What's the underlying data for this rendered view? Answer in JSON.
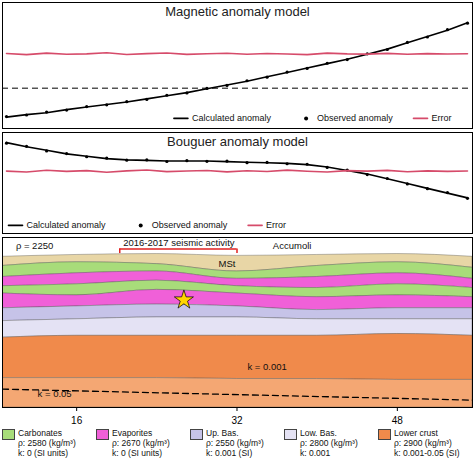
{
  "chart_data": [
    {
      "type": "line",
      "title": "Magnetic anomaly model",
      "x": [
        9,
        11,
        13,
        15,
        17,
        19,
        21,
        23,
        25,
        27,
        29,
        31,
        33,
        35,
        37,
        39,
        41,
        43,
        45,
        47,
        49,
        51,
        53,
        55
      ],
      "series": [
        {
          "name": "Calculated anomaly",
          "color": "#000000",
          "line_style": "solid",
          "values": [
            -41,
            -39,
            -37.5,
            -35,
            -33,
            -31,
            -29,
            -26.5,
            -24,
            -21.5,
            -18.5,
            -15.5,
            -12.5,
            -9,
            -5.5,
            -2,
            1.5,
            5,
            9,
            13,
            18,
            23,
            28,
            34
          ]
        },
        {
          "name": "Observed anomaly",
          "color": "#000000",
          "type": "scatter",
          "marker": "dot",
          "values": [
            -40.5,
            -39.3,
            -37,
            -35.4,
            -32.6,
            -31.2,
            -28.7,
            -26.9,
            -23.6,
            -21.8,
            -18.2,
            -15.8,
            -12.1,
            -9.3,
            -5.2,
            -2.3,
            1.8,
            4.7,
            9.3,
            12.7,
            18.3,
            22.6,
            28.4,
            33.6
          ]
        },
        {
          "name": "Error",
          "color": "#d64b6a",
          "line_style": "solid",
          "values": [
            9.5,
            8.6,
            9.8,
            8.9,
            9.2,
            10.1,
            8.7,
            9.4,
            9.9,
            8.8,
            9.3,
            9.7,
            8.9,
            9.5,
            9.1,
            8.6,
            9.8,
            9.2,
            9.0,
            9.6,
            8.9,
            9.4,
            9.1,
            9.3
          ]
        }
      ],
      "baseline": -18,
      "xlim": [
        8.6,
        55.5
      ],
      "ylim": [
        -50,
        50
      ],
      "tick_labels": false,
      "legend": "bottom-right"
    },
    {
      "type": "line",
      "title": "Bouguer anomaly model",
      "x": [
        9,
        11,
        13,
        15,
        17,
        19,
        21,
        23,
        25,
        27,
        29,
        31,
        33,
        35,
        37,
        39,
        41,
        43,
        45,
        47,
        49,
        51,
        53,
        55
      ],
      "series": [
        {
          "name": "Calculated anomaly",
          "color": "#000000",
          "line_style": "solid",
          "values": [
            36.5,
            33,
            30,
            27,
            25,
            23,
            22,
            21.5,
            21,
            21,
            21,
            20.5,
            20,
            19.5,
            19,
            18,
            16,
            13,
            10,
            6,
            2,
            -2,
            -6,
            -10
          ]
        },
        {
          "name": "Observed anomaly",
          "color": "#000000",
          "type": "scatter",
          "marker": "dot",
          "values": [
            36,
            33.4,
            29.5,
            27.3,
            24.6,
            23.4,
            21.7,
            21.9,
            20.6,
            21.3,
            20.7,
            20.9,
            19.6,
            19.8,
            18.7,
            18.3,
            15.6,
            13.4,
            9.6,
            6.3,
            1.7,
            -2.3,
            -5.6,
            -10.4
          ]
        },
        {
          "name": "Error",
          "color": "#d64b6a",
          "line_style": "solid",
          "values": [
            12.5,
            11.8,
            13.2,
            12.3,
            12.9,
            11.6,
            12.7,
            13.4,
            12.1,
            12.6,
            13.0,
            11.9,
            12.8,
            12.2,
            13.3,
            12.4,
            11.7,
            12.9,
            12.5,
            13.1,
            12.0,
            12.7,
            12.3,
            12.6
          ]
        }
      ],
      "xlim": [
        8.6,
        55.5
      ],
      "ylim": [
        -40,
        45
      ],
      "tick_labels": false,
      "legend": "bottom-left"
    },
    {
      "type": "section",
      "x": [
        8.6,
        16,
        24,
        32,
        40,
        48,
        55.5
      ],
      "layers": [
        {
          "name": "MSt",
          "color": "#e8d6a6",
          "top": [
            0.6,
            0.4,
            0.3,
            0.5,
            0.4,
            0.3,
            0.6
          ],
          "bottom": [
            1.6,
            1.2,
            1.4,
            2.2,
            1.6,
            1.2,
            1.8
          ]
        },
        {
          "name": "Carbonates",
          "color": "#a8dc7a",
          "top": [
            1.6,
            1.2,
            1.4,
            2.2,
            1.6,
            1.2,
            1.8
          ],
          "bottom": [
            2.8,
            2.4,
            2.2,
            3.0,
            2.8,
            2.4,
            3.0
          ]
        },
        {
          "name": "Evaporites",
          "color": "#f060d8",
          "top": [
            2.8,
            2.4,
            2.2,
            3.0,
            2.8,
            2.4,
            3.0
          ],
          "bottom": [
            3.8,
            3.6,
            3.2,
            3.8,
            4.0,
            3.6,
            4.0
          ]
        },
        {
          "name": "Carbonates",
          "color": "#a8dc7a",
          "top": [
            3.8,
            3.6,
            3.2,
            3.8,
            4.0,
            3.6,
            4.0
          ],
          "bottom": [
            4.6,
            4.8,
            4.2,
            4.6,
            5.0,
            4.8,
            5.0
          ]
        },
        {
          "name": "Evaporites",
          "color": "#f060d8",
          "top": [
            4.6,
            4.8,
            4.2,
            4.6,
            5.0,
            4.8,
            5.0
          ],
          "bottom": [
            6.2,
            6.0,
            5.8,
            6.0,
            6.4,
            6.2,
            6.2
          ]
        },
        {
          "name": "Up. Bas.",
          "color": "#c6c3e8",
          "top": [
            6.2,
            6.0,
            5.8,
            6.0,
            6.4,
            6.2,
            6.2
          ],
          "bottom": [
            7.6,
            7.4,
            7.2,
            7.2,
            7.4,
            7.4,
            7.4
          ]
        },
        {
          "name": "Low. Bas.",
          "color": "#e4e2f4",
          "top": [
            7.6,
            7.4,
            7.2,
            7.2,
            7.4,
            7.4,
            7.4
          ],
          "bottom": [
            9.4,
            9.2,
            9.2,
            9.2,
            9.2,
            9.0,
            9.2
          ]
        },
        {
          "name": "Lower crust",
          "color": "#f08a4b",
          "top": [
            9.4,
            9.2,
            9.2,
            9.2,
            9.2,
            9.0,
            9.2
          ],
          "bottom": [
            13.8,
            13.8,
            13.8,
            13.9,
            13.9,
            14.0,
            14.0
          ]
        },
        {
          "name": "Lower crust",
          "color": "#f4a773",
          "top": [
            13.8,
            13.8,
            13.8,
            13.9,
            13.9,
            14.0,
            14.0
          ],
          "bottom": [
            17,
            17,
            17,
            17,
            17,
            17,
            17
          ]
        }
      ],
      "dashed_boundary": {
        "x": [
          8.6,
          55.5
        ],
        "y": [
          15.0,
          16.2
        ]
      },
      "annotations": [
        {
          "text": "ρ = 2250",
          "x": 11.8,
          "y": -0.6
        },
        {
          "text": "2016-2017 seismic activity",
          "x": 26.2,
          "y": -0.95,
          "bracket": [
            20.3,
            32
          ],
          "bracket_y": -0.25,
          "color": "#e02020"
        },
        {
          "text": "Accumoli",
          "x": 37.5,
          "y": -0.6
        },
        {
          "text": "MSt",
          "x": 31.0,
          "y": 1.35
        },
        {
          "text": "k = 0.001",
          "x": 35.0,
          "y": 12.6
        },
        {
          "text": "k = 0.05",
          "x": 13.8,
          "y": 15.5
        }
      ],
      "markers": [
        {
          "x": 26.7,
          "y": 5.3,
          "marker": "star",
          "color": "#ffd500"
        }
      ],
      "xlim": [
        8.6,
        55.5
      ],
      "ylim": [
        -1.5,
        17
      ],
      "xticks": [
        16,
        32,
        48
      ],
      "tick_labels": "x",
      "layer_legend": [
        {
          "name": "Carbonates",
          "color": "#a8dc7a",
          "lines": [
            "ρ: 2580 (kg/m³)",
            "k: 0 (SI units)"
          ]
        },
        {
          "name": "Evaporites",
          "color": "#f060d8",
          "lines": [
            "ρ: 2670 (kg/m³)",
            "k: 0 (SI units)"
          ]
        },
        {
          "name": "Up. Bas.",
          "color": "#c6c3e8",
          "lines": [
            "ρ: 2550 (kg/m³)",
            "k: 0.001 (SI)"
          ]
        },
        {
          "name": "Low. Bas.",
          "color": "#e4e2f4",
          "lines": [
            "ρ: 2800 (kg/m³)",
            "k: 0.001"
          ]
        },
        {
          "name": "Lower crust",
          "color": "#f08a4b",
          "lines": [
            "ρ: 2900 (kg/m³)",
            "k: 0.001-0.05 (SI)"
          ]
        }
      ]
    }
  ]
}
